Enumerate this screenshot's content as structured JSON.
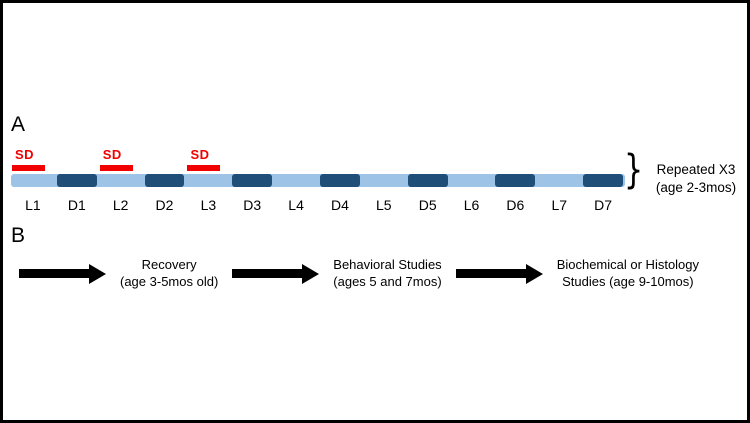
{
  "panels": {
    "a": "A",
    "b": "B"
  },
  "timeline": {
    "sd_label": "SD",
    "segments": [
      {
        "label": "L1",
        "type": "light",
        "sd": true
      },
      {
        "label": "D1",
        "type": "dark",
        "sd": false
      },
      {
        "label": "L2",
        "type": "light",
        "sd": true
      },
      {
        "label": "D2",
        "type": "dark",
        "sd": false
      },
      {
        "label": "L3",
        "type": "light",
        "sd": true
      },
      {
        "label": "D3",
        "type": "dark",
        "sd": false
      },
      {
        "label": "L4",
        "type": "light",
        "sd": false
      },
      {
        "label": "D4",
        "type": "dark",
        "sd": false
      },
      {
        "label": "L5",
        "type": "light",
        "sd": false
      },
      {
        "label": "D5",
        "type": "dark",
        "sd": false
      },
      {
        "label": "L6",
        "type": "light",
        "sd": false
      },
      {
        "label": "D6",
        "type": "dark",
        "sd": false
      },
      {
        "label": "L7",
        "type": "light",
        "sd": false
      },
      {
        "label": "D7",
        "type": "dark",
        "sd": false
      }
    ],
    "brace_note": {
      "line1": "Repeated X3",
      "line2": "(age 2-3mos)"
    }
  },
  "flow": {
    "steps": [
      {
        "line1": "Recovery",
        "line2": "(age 3-5mos old)"
      },
      {
        "line1": "Behavioral Studies",
        "line2": "(ages 5 and 7mos)"
      },
      {
        "line1": "Biochemical or Histology",
        "line2": "Studies (age 9-10mos)"
      }
    ]
  },
  "colors": {
    "light_segment": "#9DC3E6",
    "dark_segment": "#1F4E79",
    "sd_red": "#F20000",
    "arrow": "#000000",
    "text": "#000000",
    "frame_border": "#000000",
    "background": "#FFFFFF"
  }
}
